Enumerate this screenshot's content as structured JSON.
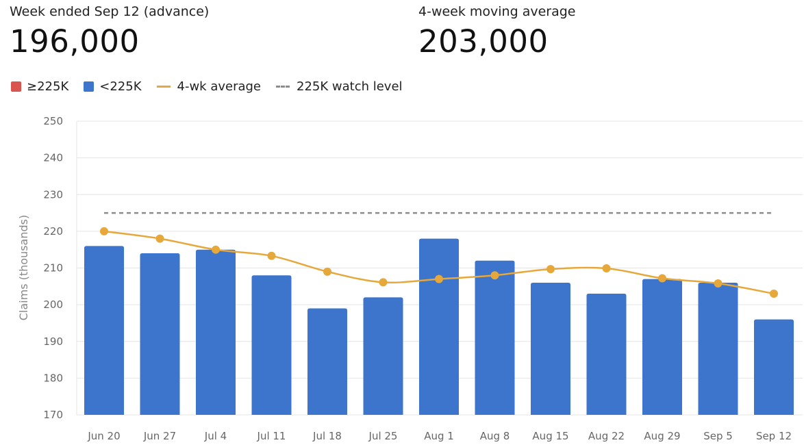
{
  "header": {
    "left_label": "Week ended Sep 12 (advance)",
    "left_value": "196,000",
    "right_label": "4-week moving average",
    "right_value": "203,000"
  },
  "legend": {
    "high_label": "≥225K",
    "low_label": "<225K",
    "avg_label": "4-wk average",
    "watch_label": "225K watch level"
  },
  "colors": {
    "high": "#d9534f",
    "low": "#3d74cc",
    "avg": "#e6a83a",
    "watch": "#8c8c8c"
  },
  "chart_data": {
    "type": "bar",
    "categories": [
      "Jun 20",
      "Jun 27",
      "Jul 4",
      "Jul 11",
      "Jul 18",
      "Jul 25",
      "Aug 1",
      "Aug 8",
      "Aug 15",
      "Aug 22",
      "Aug 29",
      "Sep 5",
      "Sep 12"
    ],
    "series": [
      {
        "name": "<225K",
        "type": "bar",
        "values": [
          216,
          214,
          215,
          208,
          199,
          202,
          218,
          212,
          206,
          203,
          207,
          206,
          196
        ]
      },
      {
        "name": "4-wk average",
        "type": "line",
        "values": [
          220,
          218,
          215,
          213.3,
          209,
          206.1,
          207,
          208,
          209.7,
          209.9,
          207.2,
          205.8,
          203
        ]
      }
    ],
    "watch_level": 225,
    "ylabel": "Claims (thousands)",
    "ylim": [
      170,
      250
    ],
    "yticks": [
      170,
      180,
      190,
      200,
      210,
      220,
      230,
      240,
      250
    ],
    "grid": true
  }
}
